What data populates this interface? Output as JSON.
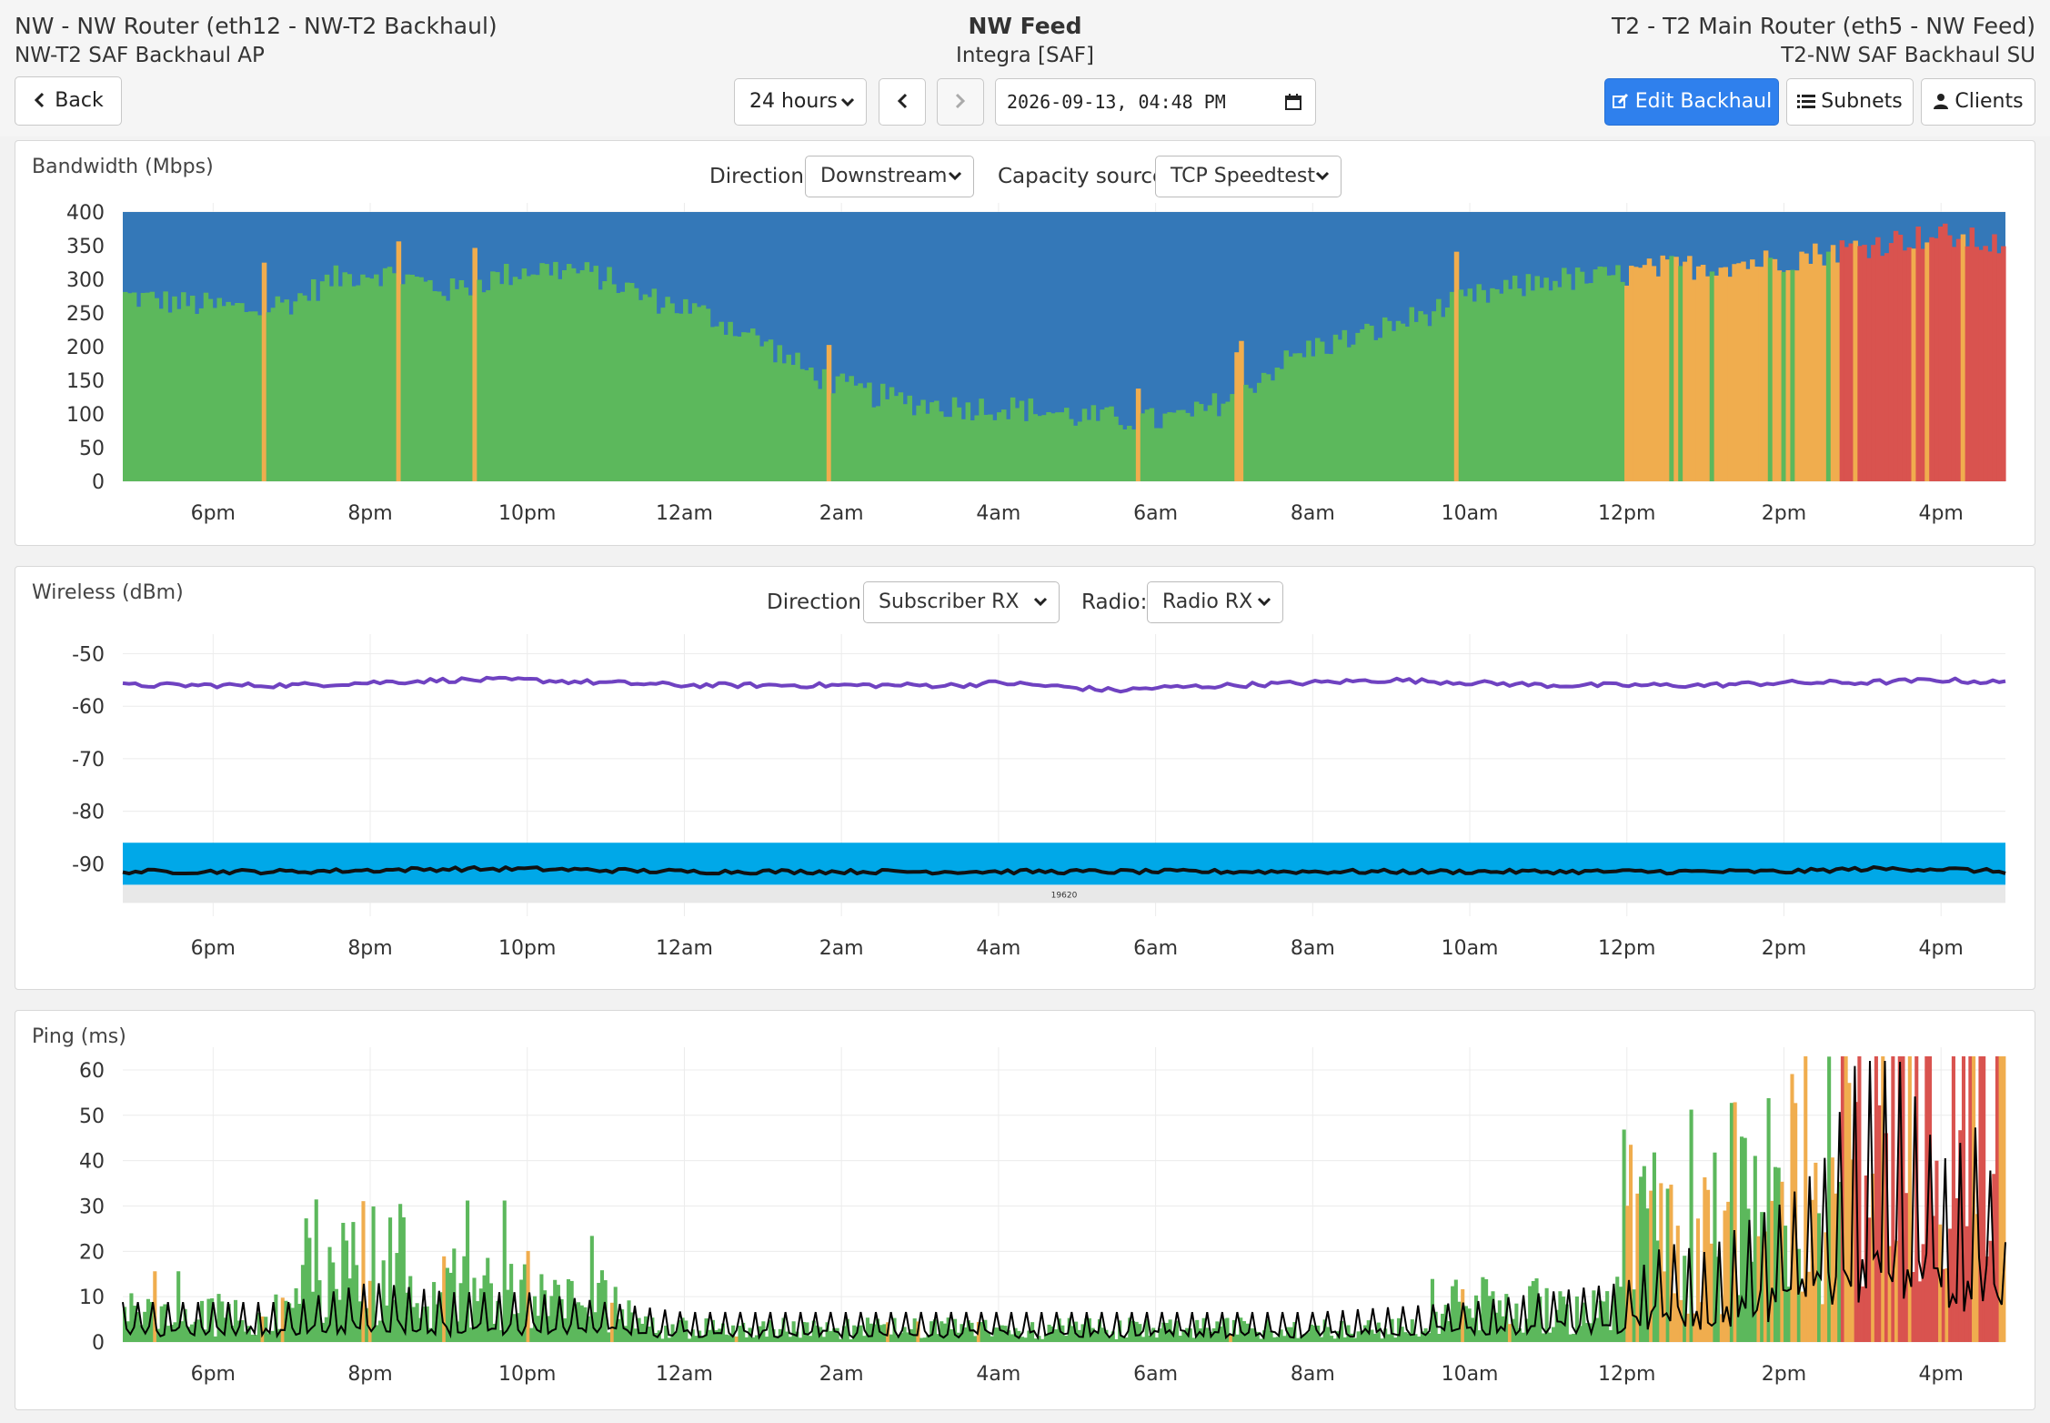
{
  "header": {
    "left_title": "NW - NW Router (eth12 - NW-T2 Backhaul)",
    "left_subtitle": "NW-T2 SAF Backhaul AP",
    "center_title": "NW Feed",
    "center_subtitle": "Integra [SAF]",
    "right_title": "T2 - T2 Main Router (eth5 - NW Feed)",
    "right_subtitle": "T2-NW SAF Backhaul SU"
  },
  "toolbar": {
    "back_label": "Back",
    "range_label": "24 hours",
    "datetime_value": "2026-09-13, 04:48 PM",
    "edit_label": "Edit Backhaul",
    "subnets_label": "Subnets",
    "clients_label": "Clients"
  },
  "icons": {
    "back": "chevron-left-icon",
    "prev": "chevron-left-icon",
    "next": "chevron-right-icon",
    "calendar": "calendar-icon",
    "edit": "edit-icon",
    "subnets": "list-icon",
    "clients": "user-icon",
    "dropdown": "chevron-down-icon"
  },
  "colors": {
    "capacity": "#3478b8",
    "good": "#5cb85c",
    "warn": "#f0ad4e",
    "bad": "#d9534f",
    "rssi": "#6f42c1",
    "noise": "#111111",
    "noise_band": "#00a8e8",
    "primary": "#2f80ed"
  },
  "panels": {
    "bandwidth": {
      "direction_label": "Direction:",
      "direction_value": "Downstream",
      "capacity_label": "Capacity source:",
      "capacity_value": "TCP Speedtest"
    },
    "wireless": {
      "direction_label": "Direction:",
      "direction_value": "Subscriber RX",
      "radio_label": "Radio:",
      "radio_value": "Radio RX",
      "band_label": "19620"
    }
  },
  "chart_data": [
    {
      "type": "bar",
      "title": "Bandwidth (Mbps)",
      "x_range_hours": [
        -23.15,
        0.82
      ],
      "x_ticks": [
        {
          "label": "6pm",
          "offset_h": -22
        },
        {
          "label": "8pm",
          "offset_h": -20
        },
        {
          "label": "10pm",
          "offset_h": -18
        },
        {
          "label": "12am",
          "offset_h": -16
        },
        {
          "label": "2am",
          "offset_h": -14
        },
        {
          "label": "4am",
          "offset_h": -12
        },
        {
          "label": "6am",
          "offset_h": -10
        },
        {
          "label": "8am",
          "offset_h": -8
        },
        {
          "label": "10am",
          "offset_h": -6
        },
        {
          "label": "12pm",
          "offset_h": -4
        },
        {
          "label": "2pm",
          "offset_h": -2
        },
        {
          "label": "4pm",
          "offset_h": 0
        }
      ],
      "ylim": [
        0,
        400
      ],
      "y_ticks": [
        0,
        50,
        100,
        150,
        200,
        250,
        300,
        350,
        400
      ],
      "grid": true,
      "series": [
        {
          "role": "capacity",
          "values_constant": 400
        },
        {
          "role": "usage",
          "x_hours": [
            -23.15,
            -22.5,
            -21.5,
            -21,
            -20.5,
            -20,
            -19.5,
            -19,
            -18.5,
            -18,
            -17.5,
            -17,
            -16.5,
            -16,
            -15.5,
            -15,
            -14.5,
            -14,
            -13.5,
            -13,
            -12.5,
            -12,
            -11.5,
            -11,
            -10.5,
            -10,
            -9.5,
            -9,
            -8.5,
            -8,
            -7.5,
            -7,
            -6.5,
            -6,
            -5.5,
            -5,
            -4.5,
            -4,
            -3.5,
            -3,
            -2.5,
            -2,
            -1.5,
            -1,
            -0.5,
            0,
            0.5,
            0.82
          ],
          "values": [
            275,
            265,
            255,
            268,
            300,
            312,
            300,
            282,
            300,
            315,
            315,
            300,
            272,
            258,
            235,
            205,
            165,
            140,
            125,
            115,
            110,
            110,
            105,
            96,
            92,
            90,
            100,
            130,
            170,
            200,
            212,
            232,
            252,
            272,
            285,
            300,
            300,
            308,
            318,
            320,
            325,
            330,
            340,
            350,
            360,
            365,
            355,
            350
          ],
          "x_warn_start_hours": -4.05,
          "x_bad_start_hours": -1.3
        }
      ]
    },
    {
      "type": "line",
      "title": "Wireless (dBm)",
      "ylim": [
        -100,
        -48
      ],
      "y_ticks": [
        -50,
        -60,
        -70,
        -80,
        -90
      ],
      "grid": true,
      "series": [
        {
          "role": "rssi",
          "x_hours": [
            -23.15,
            -21,
            -20,
            -19,
            -18,
            -17,
            -16,
            -14,
            -12.5,
            -12,
            -11.5,
            -11,
            -10.5,
            -10,
            -9,
            -8,
            -7,
            -6,
            -5,
            -4,
            -3,
            -2,
            -1,
            0,
            0.82
          ],
          "values": [
            -56,
            -56,
            -55.5,
            -55,
            -55,
            -55.5,
            -56,
            -56,
            -56,
            -55.5,
            -56,
            -56.5,
            -57,
            -56.5,
            -56,
            -55.5,
            -55,
            -55.5,
            -56,
            -56,
            -56,
            -55.5,
            -55.5,
            -55,
            -55.5
          ]
        },
        {
          "role": "noise",
          "x_hours": [
            -23.15,
            -21,
            -19,
            -18,
            -16,
            -14,
            -12,
            -10,
            -8,
            -6,
            -4,
            -2,
            -1,
            0,
            0.82
          ],
          "values": [
            -91.5,
            -91.5,
            -91,
            -91,
            -91.5,
            -91.5,
            -91.5,
            -91.5,
            -91.5,
            -91.5,
            -91.5,
            -91.5,
            -91,
            -91,
            -91.5
          ]
        },
        {
          "role": "noise_band",
          "range": [
            -86,
            -94
          ]
        }
      ]
    },
    {
      "type": "bar",
      "title": "Ping (ms)",
      "ylim": [
        0,
        63
      ],
      "y_ticks": [
        0,
        10,
        20,
        30,
        40,
        50,
        60
      ],
      "grid": true,
      "series": [
        {
          "role": "ping_bars",
          "segments": [
            {
              "from_h": -23.15,
              "to_h": -21.0,
              "level": 6
            },
            {
              "from_h": -21.0,
              "to_h": -19.5,
              "level": 18
            },
            {
              "from_h": -19.5,
              "to_h": -18.0,
              "level": 12
            },
            {
              "from_h": -18.0,
              "to_h": -16.5,
              "level": 9
            },
            {
              "from_h": -16.5,
              "to_h": -6.5,
              "level": 3
            },
            {
              "from_h": -6.5,
              "to_h": -4.1,
              "level": 8
            },
            {
              "from_h": -4.1,
              "to_h": -2.0,
              "level": 30
            },
            {
              "from_h": -2.0,
              "to_h": -1.3,
              "level": 38
            },
            {
              "from_h": -1.3,
              "to_h": 0.82,
              "level": 55
            }
          ],
          "x_warn_start_hours": -4.05,
          "x_bad_start_hours": -1.3
        },
        {
          "role": "ping_line",
          "x_hours": [
            -23.15,
            -21,
            -20,
            -19,
            -18,
            -17,
            -16,
            -14,
            -12,
            -10,
            -8,
            -6,
            -5,
            -4,
            -3.5,
            -3,
            -2.5,
            -2,
            -1.5,
            -1,
            -0.5,
            0,
            0.5,
            0.82
          ],
          "values": [
            4,
            4,
            6,
            5,
            5,
            4,
            3,
            3,
            3,
            3,
            3,
            4,
            5,
            6,
            10,
            9,
            12,
            14,
            18,
            30,
            28,
            18,
            22,
            10
          ]
        }
      ]
    }
  ]
}
